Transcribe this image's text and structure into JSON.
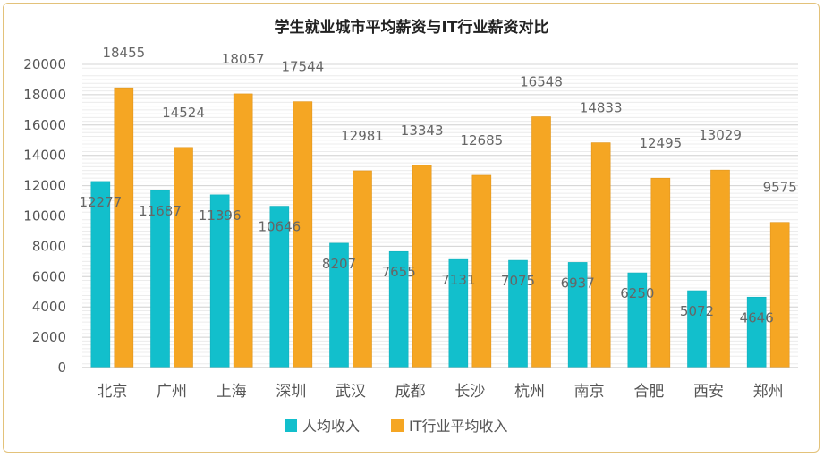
{
  "chart_data": {
    "type": "bar",
    "title": "学生就业城市平均薪资与IT行业薪资对比",
    "xlabel": "",
    "ylabel": "",
    "ylim": [
      0,
      20000
    ],
    "yticks": [
      0,
      2000,
      4000,
      6000,
      8000,
      10000,
      12000,
      14000,
      16000,
      18000,
      20000
    ],
    "ytick_labels": [
      "0",
      "2000",
      "4000",
      "6000",
      "8000",
      "10000",
      "12000",
      "14000",
      "16000",
      "18000",
      "20000"
    ],
    "grid": true,
    "legend_position": "bottom",
    "categories": [
      "北京",
      "广州",
      "上海",
      "深圳",
      "武汉",
      "成都",
      "长沙",
      "杭州",
      "南京",
      "合肥",
      "西安",
      "郑州"
    ],
    "series": [
      {
        "name": "人均收入",
        "color": "#12bfcc",
        "values": [
          12277,
          11687,
          11396,
          10646,
          8207,
          7655,
          7131,
          7075,
          6937,
          6250,
          5072,
          4646
        ],
        "labels": [
          "12277",
          "11687",
          "11396",
          "10646",
          "8207",
          "7655",
          "7131",
          "7075",
          "6937",
          "6250",
          "5072",
          "4646"
        ]
      },
      {
        "name": "IT行业平均收入",
        "color": "#f5a623",
        "values": [
          18455,
          14524,
          18057,
          17544,
          12981,
          13343,
          12685,
          16548,
          14833,
          12495,
          13029,
          9575
        ],
        "labels": [
          "18455",
          "14524",
          "18057",
          "17544",
          "12981",
          "13343",
          "12685",
          "16548",
          "14833",
          "12495",
          "13029",
          "9575"
        ]
      }
    ]
  }
}
